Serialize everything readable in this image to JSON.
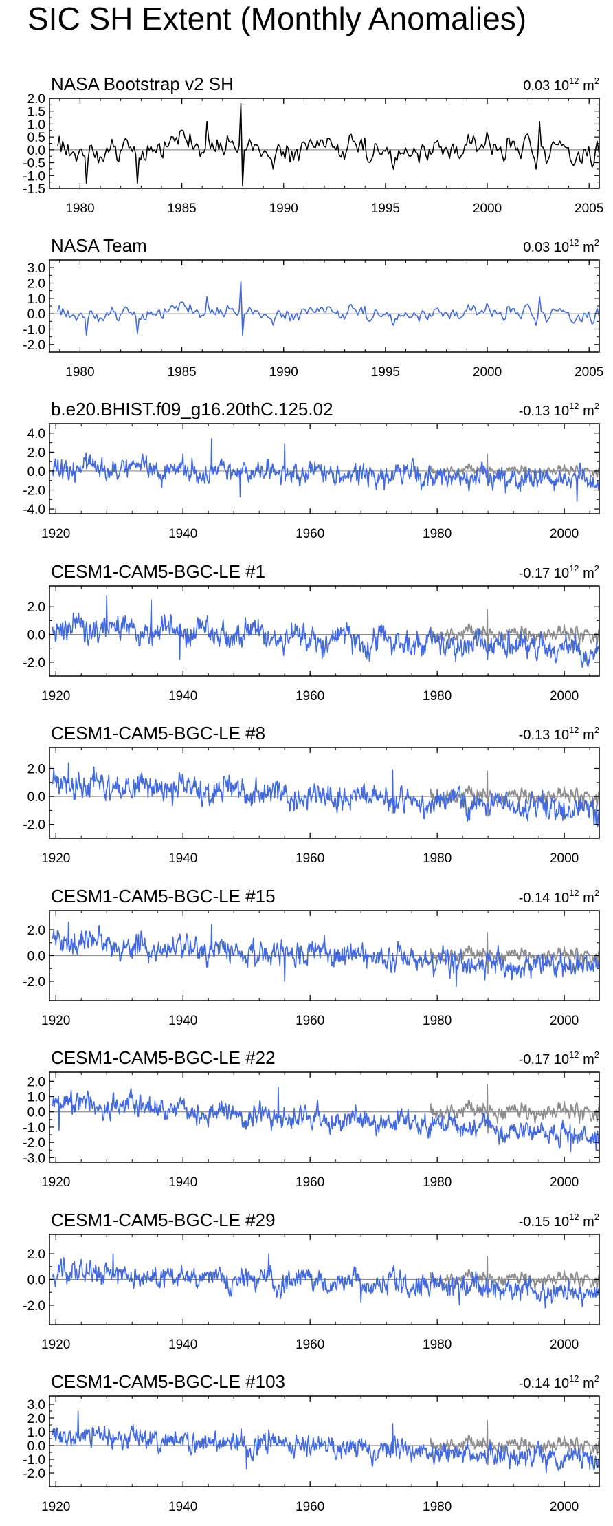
{
  "figure": {
    "title": "SIC SH Extent (Monthly Anomalies)"
  },
  "colors": {
    "observed": "#000000",
    "model": "#4169e1",
    "overlay": "#8c8c8c",
    "zero_line": "#8c8c8c",
    "axes": "#000000"
  },
  "chart_data": [
    {
      "type": "line",
      "title": "NASA Bootstrap v2 SH",
      "trend_value": "0.03",
      "trend_units": "10",
      "trend_exp": "12",
      "trend_suffix": " m",
      "trend_sup2": "2",
      "xlim": [
        1978.5,
        2005.5
      ],
      "ylim": [
        -1.5,
        2.0
      ],
      "xticks": [
        1980,
        1985,
        1990,
        1995,
        2000,
        2005
      ],
      "yticks": [
        -1.5,
        -1.0,
        -0.5,
        0.0,
        0.5,
        1.0,
        1.5,
        2.0
      ],
      "ytick_labels": [
        "-1.5",
        "-1.0",
        "-0.5",
        "0.0",
        "0.5",
        "1.0",
        "1.5",
        "2.0"
      ],
      "series": [
        {
          "role": "observed",
          "x_start": 1978.9,
          "x_end": 2005.5,
          "amplitude": 0.42,
          "trend_start": 0.0,
          "trend_end": 0.1,
          "seed": 11,
          "spikes": [
            [
              1987.9,
              1.8
            ],
            [
              1988.0,
              -1.4
            ],
            [
              1980.3,
              -1.3
            ],
            [
              1982.8,
              -1.3
            ],
            [
              1986.2,
              1.1
            ],
            [
              2002.6,
              1.1
            ]
          ]
        }
      ]
    },
    {
      "type": "line",
      "title": "NASA Team",
      "trend_value": "0.03",
      "trend_units": "10",
      "trend_exp": "12",
      "trend_suffix": " m",
      "trend_sup2": "2",
      "xlim": [
        1978.5,
        2005.5
      ],
      "ylim": [
        -2.5,
        3.5
      ],
      "xticks": [
        1980,
        1985,
        1990,
        1995,
        2000,
        2005
      ],
      "yticks": [
        -2.0,
        -1.0,
        0.0,
        1.0,
        2.0,
        3.0
      ],
      "ytick_labels": [
        "-2.0",
        "-1.0",
        "0.0",
        "1.0",
        "2.0",
        "3.0"
      ],
      "series": [
        {
          "role": "model",
          "x_start": 1978.9,
          "x_end": 2005.5,
          "amplitude": 0.42,
          "trend_start": 0.0,
          "trend_end": 0.1,
          "seed": 11,
          "spikes": [
            [
              1987.9,
              2.1
            ],
            [
              1988.0,
              -1.4
            ],
            [
              1980.3,
              -1.4
            ],
            [
              1982.8,
              -1.3
            ],
            [
              1986.2,
              1.1
            ],
            [
              2002.6,
              1.1
            ]
          ]
        }
      ]
    },
    {
      "type": "line",
      "title": "b.e20.BHIST.f09_g16.20thC.125.02",
      "trend_value": "-0.13",
      "trend_units": "10",
      "trend_exp": "12",
      "trend_suffix": " m",
      "trend_sup2": "2",
      "xlim": [
        1919.0,
        2005.5
      ],
      "ylim": [
        -4.5,
        5.0
      ],
      "xticks": [
        1920,
        1940,
        1960,
        1980,
        2000
      ],
      "yticks": [
        -4.0,
        -2.0,
        0.0,
        2.0,
        4.0
      ],
      "ytick_labels": [
        "-4.0",
        "-2.0",
        "0.0",
        "2.0",
        "4.0"
      ],
      "series": [
        {
          "role": "overlay",
          "x_start": 1978.9,
          "x_end": 2005.5,
          "amplitude": 0.42,
          "trend_start": 0.0,
          "trend_end": 0.1,
          "seed": 11,
          "spikes": [
            [
              1987.9,
              1.8
            ],
            [
              1988.0,
              -1.4
            ]
          ]
        },
        {
          "role": "model",
          "x_start": 1919.5,
          "x_end": 2005.5,
          "amplitude": 0.85,
          "trend_start": 0.3,
          "trend_end": -1.0,
          "seed": 3,
          "spikes": [
            [
              1944.5,
              3.4
            ],
            [
              1949.0,
              -2.7
            ],
            [
              1956.0,
              2.9
            ],
            [
              2002.0,
              -3.2
            ]
          ]
        }
      ]
    },
    {
      "type": "line",
      "title": "CESM1-CAM5-BGC-LE #1",
      "trend_value": "-0.17",
      "trend_units": "10",
      "trend_exp": "12",
      "trend_suffix": " m",
      "trend_sup2": "2",
      "xlim": [
        1919.0,
        2005.5
      ],
      "ylim": [
        -3.0,
        3.5
      ],
      "xticks": [
        1920,
        1940,
        1960,
        1980,
        2000
      ],
      "yticks": [
        -2.0,
        0.0,
        2.0
      ],
      "ytick_labels": [
        "-2.0",
        "0.0",
        "2.0"
      ],
      "series": [
        {
          "role": "overlay",
          "x_start": 1978.9,
          "x_end": 2005.5,
          "amplitude": 0.42,
          "trend_start": 0.0,
          "trend_end": 0.1,
          "seed": 11,
          "spikes": [
            [
              1987.9,
              1.8
            ],
            [
              1988.0,
              -1.4
            ]
          ]
        },
        {
          "role": "model",
          "x_start": 1919.5,
          "x_end": 2005.5,
          "amplitude": 0.7,
          "trend_start": 0.6,
          "trend_end": -1.2,
          "seed": 5,
          "spikes": [
            [
              1928.0,
              2.8
            ],
            [
              1935.0,
              2.5
            ],
            [
              1939.5,
              -1.8
            ],
            [
              2003.0,
              -2.0
            ]
          ]
        }
      ]
    },
    {
      "type": "line",
      "title": "CESM1-CAM5-BGC-LE #8",
      "trend_value": "-0.13",
      "trend_units": "10",
      "trend_exp": "12",
      "trend_suffix": " m",
      "trend_sup2": "2",
      "xlim": [
        1919.0,
        2005.5
      ],
      "ylim": [
        -3.0,
        3.5
      ],
      "xticks": [
        1920,
        1940,
        1960,
        1980,
        2000
      ],
      "yticks": [
        -2.0,
        0.0,
        2.0
      ],
      "ytick_labels": [
        "-2.0",
        "0.0",
        "2.0"
      ],
      "series": [
        {
          "role": "overlay",
          "x_start": 1978.9,
          "x_end": 2005.5,
          "amplitude": 0.42,
          "trend_start": 0.0,
          "trend_end": 0.1,
          "seed": 11,
          "spikes": [
            [
              1987.9,
              1.8
            ],
            [
              1988.0,
              -1.4
            ]
          ]
        },
        {
          "role": "model",
          "x_start": 1919.5,
          "x_end": 2005.5,
          "amplitude": 0.7,
          "trend_start": 1.0,
          "trend_end": -1.0,
          "seed": 8,
          "spikes": [
            [
              1922.0,
              2.4
            ],
            [
              1926.0,
              2.1
            ],
            [
              1973.0,
              1.9
            ],
            [
              2005.0,
              -2.0
            ]
          ]
        }
      ]
    },
    {
      "type": "line",
      "title": "CESM1-CAM5-BGC-LE #15",
      "trend_value": "-0.14",
      "trend_units": "10",
      "trend_exp": "12",
      "trend_suffix": " m",
      "trend_sup2": "2",
      "xlim": [
        1919.0,
        2005.5
      ],
      "ylim": [
        -3.5,
        3.5
      ],
      "xticks": [
        1920,
        1940,
        1960,
        1980,
        2000
      ],
      "yticks": [
        -2.0,
        0.0,
        2.0
      ],
      "ytick_labels": [
        "-2.0",
        "0.0",
        "2.0"
      ],
      "series": [
        {
          "role": "overlay",
          "x_start": 1978.9,
          "x_end": 2005.5,
          "amplitude": 0.42,
          "trend_start": 0.0,
          "trend_end": 0.1,
          "seed": 11,
          "spikes": [
            [
              1987.9,
              1.8
            ],
            [
              1988.0,
              -1.4
            ]
          ]
        },
        {
          "role": "model",
          "x_start": 1919.5,
          "x_end": 2005.5,
          "amplitude": 0.72,
          "trend_start": 1.0,
          "trend_end": -1.0,
          "seed": 15,
          "spikes": [
            [
              1922.0,
              2.6
            ],
            [
              1944.5,
              2.4
            ],
            [
              1956.0,
              -2.0
            ],
            [
              1983.0,
              -2.4
            ]
          ]
        }
      ]
    },
    {
      "type": "line",
      "title": "CESM1-CAM5-BGC-LE #22",
      "trend_value": "-0.17",
      "trend_units": "10",
      "trend_exp": "12",
      "trend_suffix": " m",
      "trend_sup2": "2",
      "xlim": [
        1919.0,
        2005.5
      ],
      "ylim": [
        -3.3,
        2.6
      ],
      "xticks": [
        1920,
        1940,
        1960,
        1980,
        2000
      ],
      "yticks": [
        -3.0,
        -2.0,
        -1.0,
        0.0,
        1.0,
        2.0
      ],
      "ytick_labels": [
        "-3.0",
        "-2.0",
        "-1.0",
        "0.0",
        "1.0",
        "2.0"
      ],
      "series": [
        {
          "role": "overlay",
          "x_start": 1978.9,
          "x_end": 2005.5,
          "amplitude": 0.42,
          "trend_start": 0.0,
          "trend_end": 0.1,
          "seed": 11,
          "spikes": [
            [
              1987.9,
              1.8
            ],
            [
              1988.0,
              -1.4
            ]
          ]
        },
        {
          "role": "model",
          "x_start": 1919.5,
          "x_end": 2005.5,
          "amplitude": 0.55,
          "trend_start": 0.7,
          "trend_end": -1.6,
          "seed": 22,
          "spikes": [
            [
              1955.0,
              1.6
            ],
            [
              2001.0,
              -2.6
            ],
            [
              1920.5,
              -1.2
            ]
          ]
        }
      ]
    },
    {
      "type": "line",
      "title": "CESM1-CAM5-BGC-LE #29",
      "trend_value": "-0.15",
      "trend_units": "10",
      "trend_exp": "12",
      "trend_suffix": " m",
      "trend_sup2": "2",
      "xlim": [
        1919.0,
        2005.5
      ],
      "ylim": [
        -3.5,
        3.5
      ],
      "xticks": [
        1920,
        1940,
        1960,
        1980,
        2000
      ],
      "yticks": [
        -2.0,
        0.0,
        2.0
      ],
      "ytick_labels": [
        "-2.0",
        "0.0",
        "2.0"
      ],
      "series": [
        {
          "role": "overlay",
          "x_start": 1978.9,
          "x_end": 2005.5,
          "amplitude": 0.42,
          "trend_start": 0.0,
          "trend_end": 0.1,
          "seed": 11,
          "spikes": [
            [
              1987.9,
              1.8
            ],
            [
              1988.0,
              -1.4
            ]
          ]
        },
        {
          "role": "model",
          "x_start": 1919.5,
          "x_end": 2005.5,
          "amplitude": 0.65,
          "trend_start": 0.6,
          "trend_end": -1.0,
          "seed": 29,
          "spikes": [
            [
              1929.0,
              2.0
            ],
            [
              1953.5,
              2.0
            ],
            [
              1968.0,
              -1.8
            ],
            [
              1997.0,
              -2.2
            ]
          ]
        }
      ]
    },
    {
      "type": "line",
      "title": "CESM1-CAM5-BGC-LE #103",
      "trend_value": "-0.14",
      "trend_units": "10",
      "trend_exp": "12",
      "trend_suffix": " m",
      "trend_sup2": "2",
      "xlim": [
        1919.0,
        2005.5
      ],
      "ylim": [
        -3.0,
        3.6
      ],
      "xticks": [
        1920,
        1940,
        1960,
        1980,
        2000
      ],
      "yticks": [
        -2.0,
        -1.0,
        0.0,
        1.0,
        2.0,
        3.0
      ],
      "ytick_labels": [
        "-2.0",
        "-1.0",
        "0.0",
        "1.0",
        "2.0",
        "3.0"
      ],
      "series": [
        {
          "role": "overlay",
          "x_start": 1978.9,
          "x_end": 2005.5,
          "amplitude": 0.42,
          "trend_start": 0.0,
          "trend_end": 0.1,
          "seed": 11,
          "spikes": [
            [
              1987.9,
              1.8
            ],
            [
              1988.0,
              -1.4
            ]
          ]
        },
        {
          "role": "model",
          "x_start": 1919.5,
          "x_end": 2005.5,
          "amplitude": 0.6,
          "trend_start": 0.8,
          "trend_end": -1.0,
          "seed": 103,
          "spikes": [
            [
              1923.5,
              2.5
            ],
            [
              1950.0,
              -1.7
            ],
            [
              1973.0,
              1.6
            ],
            [
              2004.0,
              -1.7
            ]
          ]
        }
      ]
    }
  ]
}
